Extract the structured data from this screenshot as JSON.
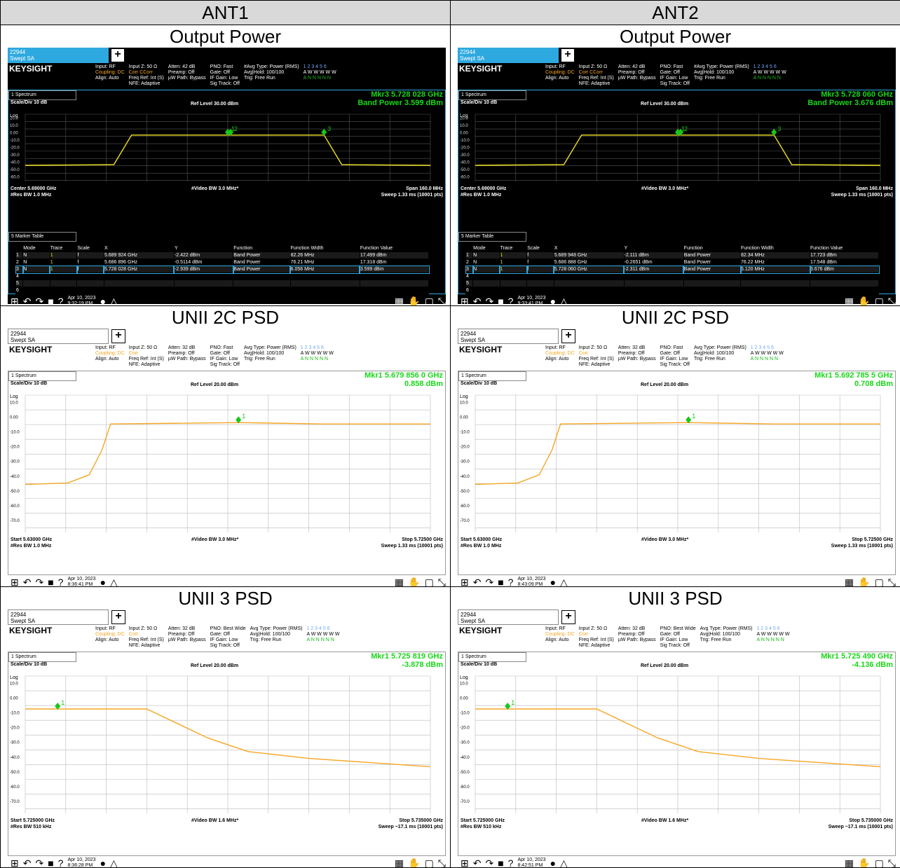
{
  "headers": [
    "ANT1",
    "ANT2"
  ],
  "rows": [
    {
      "title": "Output Power",
      "shots": [
        {
          "theme": "dark",
          "tab_line1": "22944",
          "tab_line2": "Swept SA",
          "brand": "KEYSIGHT",
          "info_col1": [
            "Input: RF",
            "Coupling: DC",
            "Align: Auto"
          ],
          "info_col2": [
            "Input Z: 50 Ω",
            "Corr CCorr",
            "Freq Ref: Int (S)",
            "NFE: Adaptive"
          ],
          "info_col3": [
            "Atten: 42 dB",
            "Preamp: Off",
            "µW Path: Bypass"
          ],
          "info_col4": [
            "PNO: Fast",
            "Gate: Off",
            "IF Gain: Low",
            "Sig Track: Off"
          ],
          "info_col5": [
            "#Avg Type: Power (RMS)",
            "Avg|Hold: 100/100",
            "Trig: Free Run"
          ],
          "trace_row1": "1 2 3 4 5 6",
          "trace_row2": "A W W W W W",
          "trace_row3": "A N N N N N",
          "window_select": "1 Spectrum",
          "marker_line1": "Mkr3  5.728 028 GHz",
          "marker_line2": "Band Power 3.599 dBm",
          "scale": "Scale/Div 10 dB",
          "log": "Log",
          "ref_level": "Ref Level 30.00 dBm",
          "yticks": [
            "20.0",
            "10.0",
            "0.00",
            "-10.0",
            "-20.0",
            "-30.0",
            "-40.0",
            "-50.0",
            "-60.0"
          ],
          "bottom_left1": "Center 5.69000 GHz",
          "bottom_left2": "#Res BW 1.0 MHz",
          "bottom_mid": "#Video BW 3.0 MHz*",
          "bottom_right1": "Span 160.0 MHz",
          "bottom_right2": "Sweep 1.33 ms (10001 pts)",
          "marker_table_label": "5 Marker Table",
          "table_headers": [
            "",
            "Mode",
            "Trace",
            "Scale",
            "X",
            "Y",
            "Function",
            "Function Width",
            "Function Value"
          ],
          "table_rows": [
            [
              "1",
              "N",
              "1",
              "f",
              "5.689 924 GHz",
              "-2.422 dBm",
              "Band Power",
              "82.26 MHz",
              "17.499 dBm"
            ],
            [
              "2",
              "N",
              "1",
              "f",
              "5.686 896 GHz",
              "-0.5114 dBm",
              "Band Power",
              "76.21 MHz",
              "17.318 dBm"
            ],
            [
              "3",
              "N",
              "1",
              "f",
              "5.728 028 GHz",
              "-2.939 dBm",
              "Band Power",
              "6.056 MHz",
              "3.599 dBm"
            ],
            [
              "4",
              "",
              "",
              "",
              "",
              "",
              "",
              "",
              ""
            ],
            [
              "5",
              "",
              "",
              "",
              "",
              "",
              "",
              "",
              ""
            ],
            [
              "6",
              "",
              "",
              "",
              "",
              "",
              "",
              "",
              ""
            ]
          ],
          "date": "Apr 10, 2023",
          "time": "9:32:19 PM"
        },
        {
          "theme": "dark",
          "tab_line1": "22944",
          "tab_line2": "Swept SA",
          "brand": "KEYSIGHT",
          "info_col1": [
            "Input: RF",
            "Coupling: DC",
            "Align: Auto"
          ],
          "info_col2": [
            "Input Z: 50 Ω",
            "Corr CCorr",
            "Freq Ref: Int (S)",
            "NFE: Adaptive"
          ],
          "info_col3": [
            "Atten: 42 dB",
            "Preamp: Off",
            "µW Path: Bypass"
          ],
          "info_col4": [
            "PNO: Fast",
            "Gate: Off",
            "IF Gain: Low",
            "Sig Track: Off"
          ],
          "info_col5": [
            "#Avg Type: Power (RMS)",
            "Avg|Hold: 100/100",
            "Trig: Free Run"
          ],
          "trace_row1": "1 2 3 4 5 6",
          "trace_row2": "A W W W W W",
          "trace_row3": "A N N N N N",
          "window_select": "1 Spectrum",
          "marker_line1": "Mkr3  5.728 060 GHz",
          "marker_line2": "Band Power 3.676 dBm",
          "scale": "Scale/Div 10 dB",
          "log": "Log",
          "ref_level": "Ref Level 30.00 dBm",
          "yticks": [
            "20.0",
            "10.0",
            "0.00",
            "-10.0",
            "-20.0",
            "-30.0",
            "-40.0",
            "-50.0",
            "-60.0"
          ],
          "bottom_left1": "Center 5.69000 GHz",
          "bottom_left2": "#Res BW 1.0 MHz",
          "bottom_mid": "#Video BW 3.0 MHz*",
          "bottom_right1": "Span 160.0 MHz",
          "bottom_right2": "Sweep 1.33 ms (10001 pts)",
          "marker_table_label": "5 Marker Table",
          "table_headers": [
            "",
            "Mode",
            "Trace",
            "Scale",
            "X",
            "Y",
            "Function",
            "Function Width",
            "Function Value"
          ],
          "table_rows": [
            [
              "1",
              "N",
              "1",
              "f",
              "5.689 948 GHz",
              "-2.111 dBm",
              "Band Power",
              "82.34 MHz",
              "17.723 dBm"
            ],
            [
              "2",
              "N",
              "1",
              "f",
              "5.686 888 GHz",
              "-0.2651 dBm",
              "Band Power",
              "76.22 MHz",
              "17.548 dBm"
            ],
            [
              "3",
              "N",
              "1",
              "f",
              "5.728 060 GHz",
              "-2.311 dBm",
              "Band Power",
              "6.120 MHz",
              "3.676 dBm"
            ],
            [
              "4",
              "",
              "",
              "",
              "",
              "",
              "",
              "",
              ""
            ],
            [
              "5",
              "",
              "",
              "",
              "",
              "",
              "",
              "",
              ""
            ],
            [
              "6",
              "",
              "",
              "",
              "",
              "",
              "",
              "",
              ""
            ]
          ],
          "date": "Apr 10, 2023",
          "time": "9:33:41 PM"
        }
      ]
    },
    {
      "title": "UNII 2C PSD",
      "shots": [
        {
          "theme": "light",
          "tab_line1": "22944",
          "tab_line2": "Swept SA",
          "brand": "KEYSIGHT",
          "info_col1": [
            "Input: RF",
            "Coupling: DC",
            "Align: Auto"
          ],
          "info_col2": [
            "Input Z: 50 Ω",
            "Corr",
            "Freq Ref: Int (S)",
            "NFE: Adaptive"
          ],
          "info_col3": [
            "Atten: 32 dB",
            "Preamp: Off",
            "µW Path: Bypass"
          ],
          "info_col4": [
            "PNO: Fast",
            "Gate: Off",
            "IF Gain: Low",
            "Sig Track: Off"
          ],
          "info_col5": [
            "Avg Type: Power (RMS)",
            "Avg|Hold: 100/100",
            "Trig: Free Run"
          ],
          "trace_row1": "1 2 3 4 5 6",
          "trace_row2": "A W W W W W",
          "trace_row3": "A N N N N N",
          "window_select": "1 Spectrum",
          "marker_line1": "Mkr1  5.679 856 0 GHz",
          "marker_line2": "0.858 dBm",
          "scale": "Scale/Div 10 dB",
          "log": "Log",
          "ref_level": "Ref Level 20.00 dBm",
          "yticks": [
            "10.0",
            "0.00",
            "-10.0",
            "-20.0",
            "-30.0",
            "-40.0",
            "-50.0",
            "-60.0",
            "-70.0"
          ],
          "bottom_left1": "Start 5.63000 GHz",
          "bottom_left2": "#Res BW 1.0 MHz",
          "bottom_mid": "#Video BW 3.0 MHz*",
          "bottom_right1": "Stop 5.72500 GHz",
          "bottom_right2": "Sweep 1.33 ms (10001 pts)",
          "date": "Apr 10, 2023",
          "time": "8:36:41 PM"
        },
        {
          "theme": "light",
          "tab_line1": "22944",
          "tab_line2": "Swept SA",
          "brand": "KEYSIGHT",
          "info_col1": [
            "Input: RF",
            "Coupling: DC",
            "Align: Auto"
          ],
          "info_col2": [
            "Input Z: 50 Ω",
            "Corr",
            "Freq Ref: Int (S)",
            "NFE: Adaptive"
          ],
          "info_col3": [
            "Atten: 32 dB",
            "Preamp: Off",
            "µW Path: Bypass"
          ],
          "info_col4": [
            "PNO: Fast",
            "Gate: Off",
            "IF Gain: Low",
            "Sig Track: Off"
          ],
          "info_col5": [
            "Avg Type: Power (RMS)",
            "Avg|Hold: 100/100",
            "Trig: Free Run"
          ],
          "trace_row1": "1 2 3 4 5 6",
          "trace_row2": "A W W W W W",
          "trace_row3": "A N N N N N",
          "window_select": "1 Spectrum",
          "marker_line1": "Mkr1  5.692 785 5 GHz",
          "marker_line2": "0.708 dBm",
          "scale": "Scale/Div 10 dB",
          "log": "Log",
          "ref_level": "Ref Level 20.00 dBm",
          "yticks": [
            "10.0",
            "0.00",
            "-10.0",
            "-20.0",
            "-30.0",
            "-40.0",
            "-50.0",
            "-60.0",
            "-70.0"
          ],
          "bottom_left1": "Start 5.63000 GHz",
          "bottom_left2": "#Res BW 1.0 MHz",
          "bottom_mid": "#Video BW 3.0 MHz*",
          "bottom_right1": "Stop 5.72500 GHz",
          "bottom_right2": "Sweep 1.33 ms (10001 pts)",
          "date": "Apr 10, 2023",
          "time": "8:43:09 PM"
        }
      ]
    },
    {
      "title": "UNII 3 PSD",
      "shots": [
        {
          "theme": "light",
          "tab_line1": "22944",
          "tab_line2": "Swept SA",
          "brand": "KEYSIGHT",
          "info_col1": [
            "Input: RF",
            "Coupling: DC",
            "Align: Auto"
          ],
          "info_col2": [
            "Input Z: 50 Ω",
            "Corr",
            "Freq Ref: Int (S)",
            "NFE: Adaptive"
          ],
          "info_col3": [
            "Atten: 32 dB",
            "Preamp: Off",
            "µW Path: Bypass"
          ],
          "info_col4": [
            "PNO: Best Wide",
            "Gate: Off",
            "IF Gain: Low",
            "Sig Track: Off"
          ],
          "info_col5": [
            "Avg Type: Power (RMS)",
            "Avg|Hold: 100/100",
            "Trig: Free Run"
          ],
          "trace_row1": "1 2 3 4 5 6",
          "trace_row2": "A W W W W W",
          "trace_row3": "A N N N N N",
          "window_select": "1 Spectrum",
          "marker_line1": "Mkr1  5.725 819 GHz",
          "marker_line2": "-3.878 dBm",
          "scale": "Scale/Div 10 dB",
          "log": "Log",
          "ref_level": "Ref Level 20.00 dBm",
          "yticks": [
            "10.0",
            "0.00",
            "-10.0",
            "-20.0",
            "-30.0",
            "-40.0",
            "-50.0",
            "-60.0",
            "-70.0"
          ],
          "bottom_left1": "Start 5.725000 GHz",
          "bottom_left2": "#Res BW 510 kHz",
          "bottom_mid": "#Video BW 1.6 MHz*",
          "bottom_right1": "Stop 5.735000 GHz",
          "bottom_right2": "Sweep ~17.1 ms (10001 pts)",
          "date": "Apr 10, 2023",
          "time": "8:36:28 PM"
        },
        {
          "theme": "light",
          "tab_line1": "22944",
          "tab_line2": "Swept SA",
          "brand": "KEYSIGHT",
          "info_col1": [
            "Input: RF",
            "Coupling: DC",
            "Align: Auto"
          ],
          "info_col2": [
            "Input Z: 50 Ω",
            "Corr",
            "Freq Ref: Int (S)",
            "NFE: Adaptive"
          ],
          "info_col3": [
            "Atten: 32 dB",
            "Preamp: Off",
            "µW Path: Bypass"
          ],
          "info_col4": [
            "PNO: Best Wide",
            "Gate: Off",
            "IF Gain: Low",
            "Sig Track: Off"
          ],
          "info_col5": [
            "Avg Type: Power (RMS)",
            "Avg|Hold: 100/100",
            "Trig: Free Run"
          ],
          "trace_row1": "1 2 3 4 5 6",
          "trace_row2": "A W W W W W",
          "trace_row3": "A N N N N N",
          "window_select": "1 Spectrum",
          "marker_line1": "Mkr1  5.725 490 GHz",
          "marker_line2": "-4.136 dBm",
          "scale": "Scale/Div 10 dB",
          "log": "Log",
          "ref_level": "Ref Level 20.00 dBm",
          "yticks": [
            "10.0",
            "0.00",
            "-10.0",
            "-20.0",
            "-30.0",
            "-40.0",
            "-50.0",
            "-60.0",
            "-70.0"
          ],
          "bottom_left1": "Start 5.725000 GHz",
          "bottom_left2": "#Res BW 510 kHz",
          "bottom_mid": "#Video BW 1.6 MHz*",
          "bottom_right1": "Stop 5.735000 GHz",
          "bottom_right2": "Sweep ~17.1 ms (10001 pts)",
          "date": "Apr 10, 2023",
          "time": "8:42:51 PM"
        }
      ]
    }
  ],
  "chart_data": [
    {
      "type": "line",
      "title": "Output Power - ANT1",
      "ylim": [
        -70,
        30
      ],
      "xlim": [
        5.61,
        5.77
      ],
      "marker_labels": [
        "1",
        "2",
        "3"
      ],
      "series": [
        {
          "x": [
            5.61,
            5.645,
            5.652,
            5.728,
            5.735,
            5.77
          ],
          "values": [
            -46,
            -45,
            -1,
            -1,
            -45,
            -46
          ]
        }
      ]
    },
    {
      "type": "line",
      "title": "Output Power - ANT2",
      "ylim": [
        -70,
        30
      ],
      "xlim": [
        5.61,
        5.77
      ],
      "marker_labels": [
        "1",
        "2",
        "3"
      ],
      "series": [
        {
          "x": [
            5.61,
            5.645,
            5.652,
            5.728,
            5.735,
            5.77
          ],
          "values": [
            -46,
            -45,
            -1,
            -1,
            -45,
            -46
          ]
        }
      ]
    },
    {
      "type": "line",
      "title": "UNII 2C PSD - ANT1",
      "ylim": [
        -80,
        20
      ],
      "xlim": [
        5.63,
        5.725
      ],
      "marker_labels": [
        "1"
      ],
      "series": [
        {
          "x": [
            5.63,
            5.64,
            5.645,
            5.648,
            5.65,
            5.68,
            5.7,
            5.725
          ],
          "values": [
            -45,
            -44,
            -38,
            -20,
            -1,
            0,
            -1,
            -1
          ]
        }
      ]
    },
    {
      "type": "line",
      "title": "UNII 2C PSD - ANT2",
      "ylim": [
        -80,
        20
      ],
      "xlim": [
        5.63,
        5.725
      ],
      "marker_labels": [
        "1"
      ],
      "series": [
        {
          "x": [
            5.63,
            5.64,
            5.645,
            5.648,
            5.65,
            5.68,
            5.7,
            5.725
          ],
          "values": [
            -45,
            -44,
            -38,
            -20,
            -1,
            0,
            -1,
            -1
          ]
        }
      ]
    },
    {
      "type": "line",
      "title": "UNII 3 PSD - ANT1",
      "ylim": [
        -80,
        20
      ],
      "xlim": [
        5.725,
        5.735
      ],
      "marker_labels": [
        "1"
      ],
      "series": [
        {
          "x": [
            5.725,
            5.728,
            5.7295,
            5.7305,
            5.732,
            5.735
          ],
          "values": [
            -4,
            -4,
            -25,
            -35,
            -40,
            -46
          ]
        }
      ]
    },
    {
      "type": "line",
      "title": "UNII 3 PSD - ANT2",
      "ylim": [
        -80,
        20
      ],
      "xlim": [
        5.725,
        5.735
      ],
      "marker_labels": [
        "1"
      ],
      "series": [
        {
          "x": [
            5.725,
            5.728,
            5.7295,
            5.7305,
            5.732,
            5.735
          ],
          "values": [
            -4,
            -4,
            -25,
            -35,
            -40,
            -46
          ]
        }
      ]
    }
  ]
}
